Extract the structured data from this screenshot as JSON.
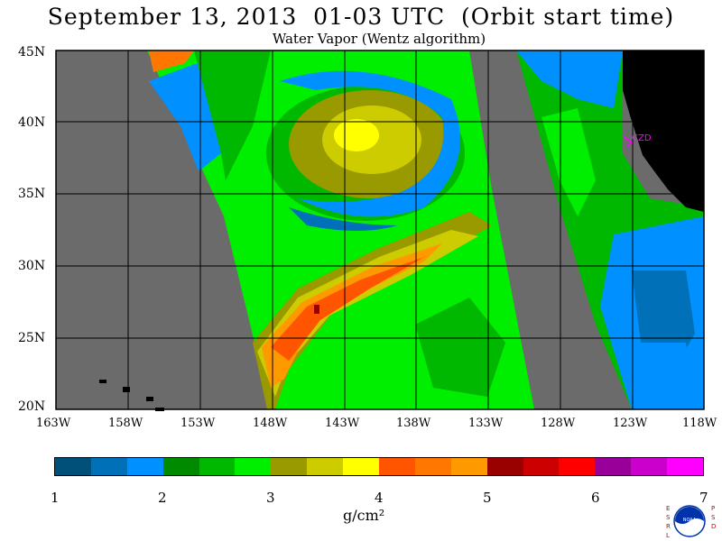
{
  "header": {
    "title": "September 13, 2013  01-03 UTC  (Orbit start time)",
    "subtitle": "Water Vapor (Wentz algorithm)"
  },
  "map": {
    "lat_labels": [
      "45N",
      "40N",
      "35N",
      "30N",
      "25N",
      "20N"
    ],
    "lon_labels": [
      "163W",
      "158W",
      "153W",
      "148W",
      "143W",
      "138W",
      "133W",
      "128W",
      "123W",
      "118W"
    ],
    "station_label": "CZD",
    "station_color": "#ff00ff",
    "nodata_color": "#6b6b6b",
    "land_color": "#000000"
  },
  "colorbar": {
    "unit": "g/cm²",
    "tick_labels": [
      "1",
      "2",
      "3",
      "4",
      "5",
      "6",
      "7"
    ],
    "colors": [
      "#00507a",
      "#0070b8",
      "#0090ff",
      "#008a00",
      "#00b800",
      "#00ee00",
      "#999900",
      "#cccc00",
      "#ffff00",
      "#ff5500",
      "#ff7700",
      "#ff9900",
      "#990000",
      "#cc0000",
      "#ff0000",
      "#990099",
      "#cc00cc",
      "#ff00ff"
    ]
  },
  "logo": {
    "left_letters": "ESRL",
    "right_letters": "PSD",
    "text": "NOAA"
  }
}
